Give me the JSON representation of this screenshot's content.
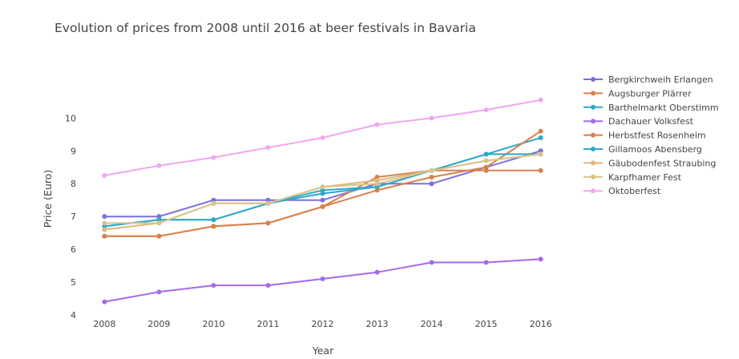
{
  "chart_data": {
    "type": "line",
    "title": "Evolution of prices from 2008 until 2016 at beer festivals in Bavaria",
    "xlabel": "Year",
    "ylabel": "Price (Euro)",
    "x": [
      2008,
      2009,
      2010,
      2011,
      2012,
      2013,
      2014,
      2015,
      2016
    ],
    "xlim": [
      2007.7,
      2016.3
    ],
    "ylim": [
      4,
      11.4
    ],
    "yticks": [
      4,
      5,
      6,
      7,
      8,
      9,
      10
    ],
    "grid": false,
    "legend_position": "right",
    "series": [
      {
        "name": "Bergkirchweih Erlangen",
        "color": "#7b6fe0",
        "values": [
          7.0,
          7.0,
          7.5,
          7.5,
          7.5,
          8.0,
          8.0,
          8.5,
          9.0
        ]
      },
      {
        "name": "Augsburger Plärrer",
        "color": "#d9804a",
        "values": [
          6.4,
          6.4,
          6.7,
          6.8,
          7.3,
          8.2,
          8.4,
          8.4,
          8.4
        ]
      },
      {
        "name": "Barthelmarkt Oberstimm",
        "color": "#2fa8c8",
        "values": [
          6.7,
          6.9,
          6.9,
          7.4,
          7.7,
          7.9,
          8.4,
          8.9,
          9.4
        ]
      },
      {
        "name": "Dachauer Volksfest",
        "color": "#a66ae8",
        "values": [
          4.4,
          4.7,
          4.9,
          4.9,
          5.1,
          5.3,
          5.6,
          5.6,
          5.7
        ]
      },
      {
        "name": "Herbstfest Rosenheim",
        "color": "#d9804a",
        "values": [
          6.4,
          6.4,
          6.7,
          6.8,
          7.3,
          7.8,
          8.2,
          8.5,
          9.6
        ]
      },
      {
        "name": "Gillamoos Abensberg",
        "color": "#2fa8c8",
        "values": [
          6.7,
          6.9,
          6.9,
          7.4,
          7.8,
          7.9,
          8.4,
          8.9,
          8.9
        ]
      },
      {
        "name": "Gäubodenfest Straubing",
        "color": "#e2b47a",
        "values": [
          6.6,
          6.8,
          7.4,
          7.4,
          7.9,
          8.1,
          8.4,
          8.7,
          8.9
        ]
      },
      {
        "name": "Karpfhamer Fest",
        "color": "#d8c48a",
        "values": [
          6.8,
          6.8,
          7.4,
          7.4,
          7.9,
          8.0,
          8.4,
          8.7,
          8.9
        ]
      },
      {
        "name": "Oktoberfest",
        "color": "#f0a6f2",
        "values": [
          8.25,
          8.55,
          8.8,
          9.1,
          9.4,
          9.8,
          10.0,
          10.25,
          10.55
        ]
      }
    ]
  }
}
